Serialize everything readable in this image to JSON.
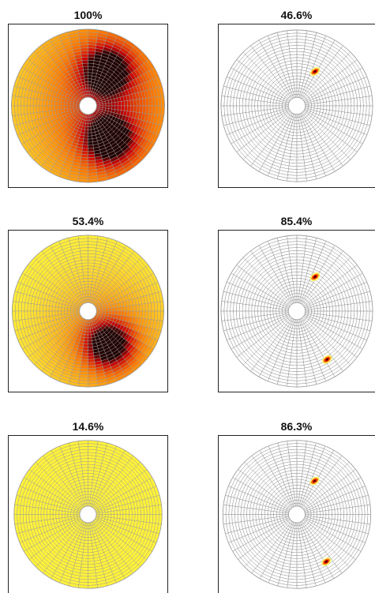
{
  "panels": [
    {
      "label": "100%",
      "style": "heatmap",
      "hotspots": [
        {
          "angle_deg": 62,
          "radius_frac": 0.45,
          "intensity": 1.0
        },
        {
          "angle_deg": 302,
          "radius_frac": 0.45,
          "intensity": 1.0
        }
      ],
      "background_intensity": 0.12
    },
    {
      "label": "46.6%",
      "style": "mesh",
      "hotspots": [
        {
          "angle_deg": 62,
          "radius_frac": 0.45
        }
      ]
    },
    {
      "label": "53.4%",
      "style": "heatmap",
      "hotspots": [
        {
          "angle_deg": 302,
          "radius_frac": 0.45,
          "intensity": 1.0
        }
      ],
      "background_intensity": 0.04
    },
    {
      "label": "85.4%",
      "style": "mesh",
      "hotspots": [
        {
          "angle_deg": 62,
          "radius_frac": 0.45
        },
        {
          "angle_deg": 302,
          "radius_frac": 0.72
        }
      ]
    },
    {
      "label": "14.6%",
      "style": "heatmap",
      "hotspots": [],
      "background_intensity": 0.04
    },
    {
      "label": "86.3%",
      "style": "mesh",
      "hotspots": [
        {
          "angle_deg": 62,
          "radius_frac": 0.45
        },
        {
          "angle_deg": 302,
          "radius_frac": 0.72
        }
      ]
    }
  ],
  "colors": {
    "mesh_line": "#9a9a9a",
    "heat_low": "#ffff40",
    "heat_mid": "#ff7a00",
    "heat_high": "#cc0000",
    "heat_peak": "#200000"
  }
}
